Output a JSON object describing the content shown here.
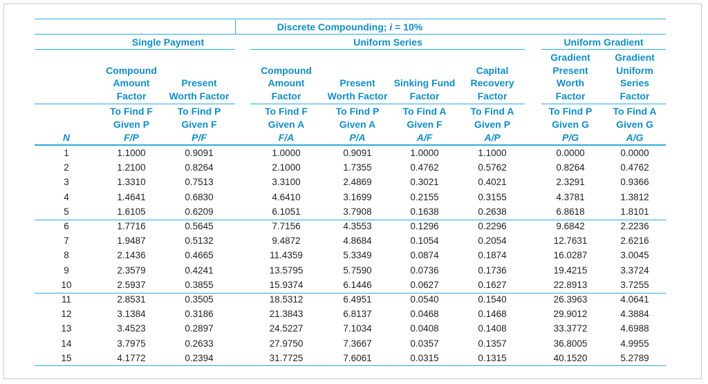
{
  "title_prefix": "Discrete Compounding; ",
  "title_var": "i",
  "title_suffix": " = 10%",
  "groups": {
    "single_payment": "Single Payment",
    "uniform_series": "Uniform Series",
    "uniform_gradient": "Uniform Gradient"
  },
  "columns": [
    {
      "name_lines": [
        "Compound",
        "Amount",
        "Factor"
      ],
      "find": "To Find F",
      "given": "Given P",
      "symbol": "F/P"
    },
    {
      "name_lines": [
        "Present",
        "Worth Factor"
      ],
      "find": "To Find P",
      "given": "Given F",
      "symbol": "P/F"
    },
    {
      "name_lines": [
        "Compound",
        "Amount",
        "Factor"
      ],
      "find": "To Find F",
      "given": "Given A",
      "symbol": "F/A"
    },
    {
      "name_lines": [
        "Present",
        "Worth Factor"
      ],
      "find": "To Find P",
      "given": "Given A",
      "symbol": "P/A"
    },
    {
      "name_lines": [
        "Sinking Fund",
        "Factor"
      ],
      "find": "To Find A",
      "given": "Given F",
      "symbol": "A/F"
    },
    {
      "name_lines": [
        "Capital",
        "Recovery",
        "Factor"
      ],
      "find": "To Find A",
      "given": "Given P",
      "symbol": "A/P"
    },
    {
      "name_lines": [
        "Gradient",
        "Present",
        "Worth",
        "Factor"
      ],
      "find": "To Find P",
      "given": "Given G",
      "symbol": "P/G"
    },
    {
      "name_lines": [
        "Gradient",
        "Uniform",
        "Series",
        "Factor"
      ],
      "find": "To Find A",
      "given": "Given G",
      "symbol": "A/G"
    }
  ],
  "n_header": "N",
  "rows": [
    {
      "n": "1",
      "values": [
        "1.1000",
        "0.9091",
        "1.0000",
        "0.9091",
        "1.0000",
        "1.1000",
        "0.0000",
        "0.0000"
      ]
    },
    {
      "n": "2",
      "values": [
        "1.2100",
        "0.8264",
        "2.1000",
        "1.7355",
        "0.4762",
        "0.5762",
        "0.8264",
        "0.4762"
      ]
    },
    {
      "n": "3",
      "values": [
        "1.3310",
        "0.7513",
        "3.3100",
        "2.4869",
        "0.3021",
        "0.4021",
        "2.3291",
        "0.9366"
      ]
    },
    {
      "n": "4",
      "values": [
        "1.4641",
        "0.6830",
        "4.6410",
        "3.1699",
        "0.2155",
        "0.3155",
        "4.3781",
        "1.3812"
      ]
    },
    {
      "n": "5",
      "values": [
        "1.6105",
        "0.6209",
        "6.1051",
        "3.7908",
        "0.1638",
        "0.2638",
        "6.8618",
        "1.8101"
      ]
    },
    {
      "n": "6",
      "values": [
        "1.7716",
        "0.5645",
        "7.7156",
        "4.3553",
        "0.1296",
        "0.2296",
        "9.6842",
        "2.2236"
      ]
    },
    {
      "n": "7",
      "values": [
        "1.9487",
        "0.5132",
        "9.4872",
        "4.8684",
        "0.1054",
        "0.2054",
        "12.7631",
        "2.6216"
      ]
    },
    {
      "n": "8",
      "values": [
        "2.1436",
        "0.4665",
        "11.4359",
        "5.3349",
        "0.0874",
        "0.1874",
        "16.0287",
        "3.0045"
      ]
    },
    {
      "n": "9",
      "values": [
        "2.3579",
        "0.4241",
        "13.5795",
        "5.7590",
        "0.0736",
        "0.1736",
        "19.4215",
        "3.3724"
      ]
    },
    {
      "n": "10",
      "values": [
        "2.5937",
        "0.3855",
        "15.9374",
        "6.1446",
        "0.0627",
        "0.1627",
        "22.8913",
        "3.7255"
      ]
    },
    {
      "n": "11",
      "values": [
        "2.8531",
        "0.3505",
        "18.5312",
        "6.4951",
        "0.0540",
        "0.1540",
        "26.3963",
        "4.0641"
      ]
    },
    {
      "n": "12",
      "values": [
        "3.1384",
        "0.3186",
        "21.3843",
        "6.8137",
        "0.0468",
        "0.1468",
        "29.9012",
        "4.3884"
      ]
    },
    {
      "n": "13",
      "values": [
        "3.4523",
        "0.2897",
        "24.5227",
        "7.1034",
        "0.0408",
        "0.1408",
        "33.3772",
        "4.6988"
      ]
    },
    {
      "n": "14",
      "values": [
        "3.7975",
        "0.2633",
        "27.9750",
        "7.3667",
        "0.0357",
        "0.1357",
        "36.8005",
        "4.9955"
      ]
    },
    {
      "n": "15",
      "values": [
        "4.1772",
        "0.2394",
        "31.7725",
        "7.6061",
        "0.0315",
        "0.1315",
        "40.1520",
        "5.2789"
      ]
    }
  ],
  "colors": {
    "rule": "#29abe2",
    "header_text": "#0f8ec6",
    "body_text": "#222222"
  }
}
